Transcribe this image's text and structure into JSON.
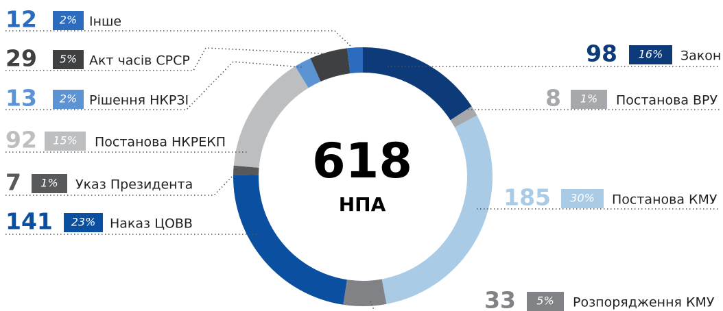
{
  "chart_data": {
    "type": "pie",
    "donut": true,
    "center_value": "618",
    "center_label": "НПА",
    "categories": [
      "Закон",
      "Постанова ВРУ",
      "Постанова КМУ",
      "Розпорядження КМУ",
      "Наказ ЦОВВ",
      "Указ Президента",
      "Постанова НКРЕКП",
      "Рішення НКРЗІ",
      "Акт часів СРСР",
      "Інше"
    ],
    "values": [
      98,
      8,
      185,
      33,
      141,
      7,
      92,
      13,
      29,
      12
    ],
    "shares": [
      "16%",
      "1%",
      "30%",
      "5%",
      "23%",
      "1%",
      "15%",
      "2%",
      "5%",
      "2%"
    ],
    "colors": [
      "#0d3b7a",
      "#a6a8ab",
      "#a9cbe6",
      "#808285",
      "#0b4fa0",
      "#58595b",
      "#bcbec0",
      "#5b93d3",
      "#3f4042",
      "#2b6cbf"
    ]
  }
}
